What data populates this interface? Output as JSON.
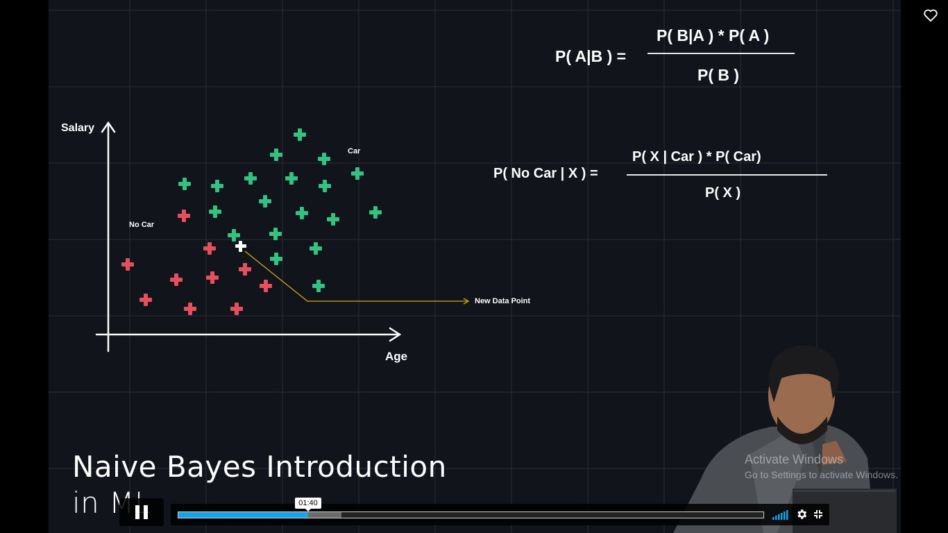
{
  "slide": {
    "formula1": {
      "lhs": "P( A|B ) =",
      "numerator": "P( B|A ) * P( A )",
      "denominator": "P( B )"
    },
    "formula2": {
      "lhs": "P( No Car | X ) =",
      "numerator": "P( X | Car ) * P( Car)",
      "denominator": "P( X )"
    },
    "y_axis_label": "Salary",
    "x_axis_label": "Age",
    "car_label": "Car",
    "no_car_label": "No Car",
    "new_point_label": "New Data Point",
    "title_line1": "Naive Bayes Introduction",
    "title_line2": "in ML"
  },
  "watermark": {
    "line1": "Activate Windows",
    "line2": "Go to Settings to activate Windows."
  },
  "player": {
    "timecode": "01:40",
    "progress_played": 0.222,
    "progress_buffered": 0.279,
    "state": "playing",
    "icons": [
      "pause-icon",
      "volume-icon",
      "settings-gear-icon",
      "fullscreen-icon",
      "heart-icon"
    ],
    "accent_color": "#1aa2e6"
  },
  "colors": {
    "car": "#33c27f",
    "no_car": "#e5505d",
    "new_point": "#ffffff",
    "pointer_line": "#d4a814"
  }
}
